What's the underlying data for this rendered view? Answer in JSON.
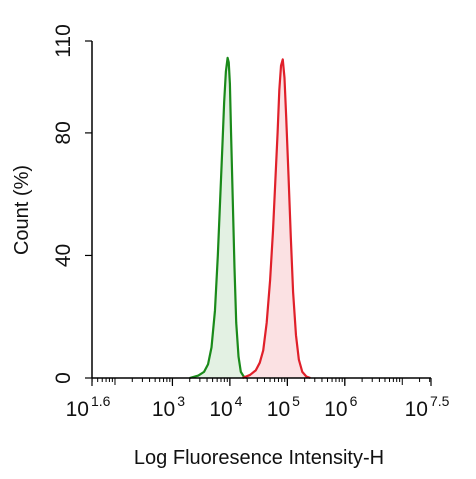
{
  "chart_data": {
    "type": "area",
    "xlabel": "Log Fluoresence Intensity-H",
    "ylabel": "Count  (%)",
    "x_scale": "log10",
    "xlim_exponent": [
      1.6,
      7.5
    ],
    "ylim": [
      0,
      110
    ],
    "x_ticks": [
      {
        "base": "10",
        "exponent": "1.6",
        "value": 1.6
      },
      {
        "base": "10",
        "exponent": "3",
        "value": 3
      },
      {
        "base": "10",
        "exponent": "4",
        "value": 4
      },
      {
        "base": "10",
        "exponent": "5",
        "value": 5
      },
      {
        "base": "10",
        "exponent": "6",
        "value": 6
      },
      {
        "base": "10",
        "exponent": "7.5",
        "value": 7.5
      }
    ],
    "y_ticks": [
      {
        "label": "0",
        "value": 0
      },
      {
        "label": "40",
        "value": 40
      },
      {
        "label": "80",
        "value": 80
      },
      {
        "label": "110",
        "value": 110
      }
    ],
    "grid": false,
    "legend": "none",
    "series": [
      {
        "color": "#1a8a1a",
        "fill": "#e3f1e3",
        "x": [
          3.3,
          3.45,
          3.55,
          3.62,
          3.68,
          3.74,
          3.79,
          3.83,
          3.87,
          3.9,
          3.93,
          3.96,
          3.98,
          4.0,
          4.02,
          4.05,
          4.08,
          4.11,
          4.15,
          4.19,
          4.24,
          4.3
        ],
        "y": [
          0,
          0.8,
          2,
          4.5,
          10,
          22,
          40,
          58,
          76,
          90,
          100,
          104.5,
          103,
          96,
          80,
          58,
          36,
          18,
          7,
          2,
          0.5,
          0
        ]
      },
      {
        "color": "#e0202a",
        "fill": "#fbe1e3",
        "x": [
          4.22,
          4.35,
          4.45,
          4.52,
          4.58,
          4.64,
          4.7,
          4.75,
          4.79,
          4.83,
          4.86,
          4.89,
          4.92,
          4.95,
          4.98,
          5.02,
          5.06,
          5.1,
          5.15,
          5.2,
          5.26,
          5.33,
          5.4
        ],
        "y": [
          0,
          1,
          2.5,
          5,
          9,
          18,
          32,
          48,
          64,
          80,
          94,
          102,
          104,
          98,
          85,
          66,
          46,
          28,
          14,
          6,
          2,
          0.5,
          0
        ]
      }
    ]
  }
}
